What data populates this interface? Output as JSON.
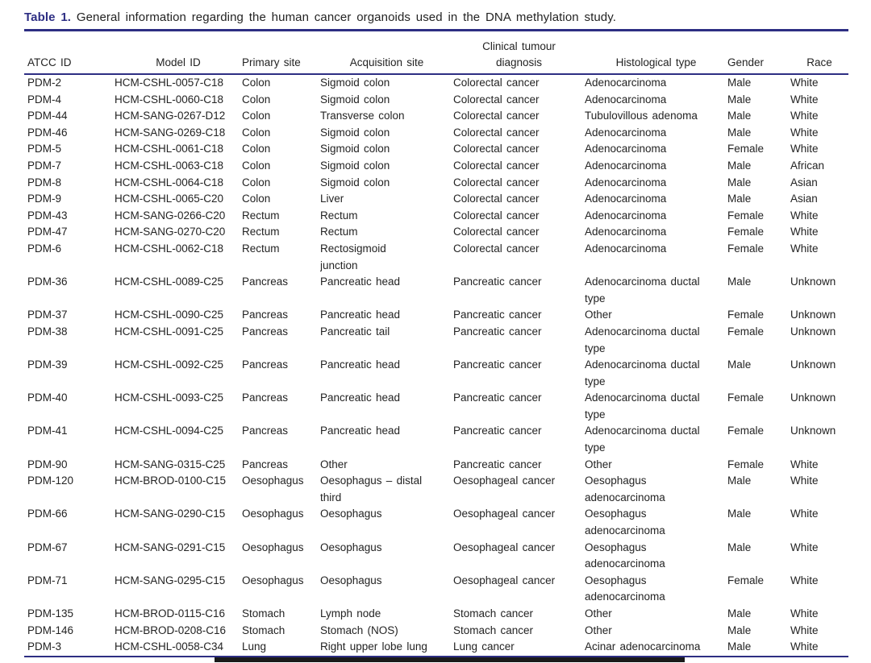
{
  "title": {
    "prefix": "Table 1.",
    "text": " General information regarding the human cancer organoids used in the DNA methylation study."
  },
  "colors": {
    "accent_navy": "#2d2e83",
    "body_text": "#232323",
    "next_table_rule": "#1a1a1a"
  },
  "table": {
    "column_keys": [
      "atcc_id",
      "model_id",
      "primary_site",
      "acquisition_site",
      "clinical_tumour_diagnosis",
      "histological_type",
      "gender",
      "race"
    ],
    "headers": {
      "atcc_id": "ATCC ID",
      "model_id": "Model ID",
      "primary_site": "Primary site",
      "acquisition_site": "Acquisition site",
      "clinical_tumour_diagnosis": "Clinical tumour\ndiagnosis",
      "histological_type": "Histological type",
      "gender": "Gender",
      "race": "Race"
    },
    "rows": [
      [
        "PDM-2",
        "HCM-CSHL-0057-C18",
        "Colon",
        "Sigmoid colon",
        "Colorectal cancer",
        "Adenocarcinoma",
        "Male",
        "White"
      ],
      [
        "PDM-4",
        "HCM-CSHL-0060-C18",
        "Colon",
        "Sigmoid colon",
        "Colorectal cancer",
        "Adenocarcinoma",
        "Male",
        "White"
      ],
      [
        "PDM-44",
        "HCM-SANG-0267-D12",
        "Colon",
        "Transverse colon",
        "Colorectal cancer",
        "Tubulovillous adenoma",
        "Male",
        "White"
      ],
      [
        "PDM-46",
        "HCM-SANG-0269-C18",
        "Colon",
        "Sigmoid colon",
        "Colorectal cancer",
        "Adenocarcinoma",
        "Male",
        "White"
      ],
      [
        "PDM-5",
        "HCM-CSHL-0061-C18",
        "Colon",
        "Sigmoid colon",
        "Colorectal cancer",
        "Adenocarcinoma",
        "Female",
        "White"
      ],
      [
        "PDM-7",
        "HCM-CSHL-0063-C18",
        "Colon",
        "Sigmoid colon",
        "Colorectal cancer",
        "Adenocarcinoma",
        "Male",
        "African"
      ],
      [
        "PDM-8",
        "HCM-CSHL-0064-C18",
        "Colon",
        "Sigmoid colon",
        "Colorectal cancer",
        "Adenocarcinoma",
        "Male",
        "Asian"
      ],
      [
        "PDM-9",
        "HCM-CSHL-0065-C20",
        "Colon",
        "Liver",
        "Colorectal cancer",
        "Adenocarcinoma",
        "Male",
        "Asian"
      ],
      [
        "PDM-43",
        "HCM-SANG-0266-C20",
        "Rectum",
        "Rectum",
        "Colorectal cancer",
        "Adenocarcinoma",
        "Female",
        "White"
      ],
      [
        "PDM-47",
        "HCM-SANG-0270-C20",
        "Rectum",
        "Rectum",
        "Colorectal cancer",
        "Adenocarcinoma",
        "Female",
        "White"
      ],
      [
        "PDM-6",
        "HCM-CSHL-0062-C18",
        "Rectum",
        "Rectosigmoid\njunction",
        "Colorectal cancer",
        "Adenocarcinoma",
        "Female",
        "White"
      ],
      [
        "PDM-36",
        "HCM-CSHL-0089-C25",
        "Pancreas",
        "Pancreatic head",
        "Pancreatic cancer",
        "Adenocarcinoma ductal\ntype",
        "Male",
        "Unknown"
      ],
      [
        "PDM-37",
        "HCM-CSHL-0090-C25",
        "Pancreas",
        "Pancreatic head",
        "Pancreatic cancer",
        "Other",
        "Female",
        "Unknown"
      ],
      [
        "PDM-38",
        "HCM-CSHL-0091-C25",
        "Pancreas",
        "Pancreatic tail",
        "Pancreatic cancer",
        "Adenocarcinoma ductal\ntype",
        "Female",
        "Unknown"
      ],
      [
        "PDM-39",
        "HCM-CSHL-0092-C25",
        "Pancreas",
        "Pancreatic head",
        "Pancreatic cancer",
        "Adenocarcinoma ductal\ntype",
        "Male",
        "Unknown"
      ],
      [
        "PDM-40",
        "HCM-CSHL-0093-C25",
        "Pancreas",
        "Pancreatic head",
        "Pancreatic cancer",
        "Adenocarcinoma ductal\ntype",
        "Female",
        "Unknown"
      ],
      [
        "PDM-41",
        "HCM-CSHL-0094-C25",
        "Pancreas",
        "Pancreatic head",
        "Pancreatic cancer",
        "Adenocarcinoma ductal\ntype",
        "Female",
        "Unknown"
      ],
      [
        "PDM-90",
        "HCM-SANG-0315-C25",
        "Pancreas",
        "Other",
        "Pancreatic cancer",
        "Other",
        "Female",
        "White"
      ],
      [
        "PDM-120",
        "HCM-BROD-0100-C15",
        "Oesophagus",
        "Oesophagus – distal\nthird",
        "Oesophageal cancer",
        "Oesophagus\nadenocarcinoma",
        "Male",
        "White"
      ],
      [
        "PDM-66",
        "HCM-SANG-0290-C15",
        "Oesophagus",
        "Oesophagus",
        "Oesophageal cancer",
        "Oesophagus\nadenocarcinoma",
        "Male",
        "White"
      ],
      [
        "PDM-67",
        "HCM-SANG-0291-C15",
        "Oesophagus",
        "Oesophagus",
        "Oesophageal cancer",
        "Oesophagus\nadenocarcinoma",
        "Male",
        "White"
      ],
      [
        "PDM-71",
        "HCM-SANG-0295-C15",
        "Oesophagus",
        "Oesophagus",
        "Oesophageal cancer",
        "Oesophagus\nadenocarcinoma",
        "Female",
        "White"
      ],
      [
        "PDM-135",
        "HCM-BROD-0115-C16",
        "Stomach",
        "Lymph node",
        "Stomach cancer",
        "Other",
        "Male",
        "White"
      ],
      [
        "PDM-146",
        "HCM-BROD-0208-C16",
        "Stomach",
        "Stomach (NOS)",
        "Stomach cancer",
        "Other",
        "Male",
        "White"
      ],
      [
        "PDM-3",
        "HCM-CSHL-0058-C34",
        "Lung",
        "Right upper lobe lung",
        "Lung cancer",
        "Acinar adenocarcinoma",
        "Male",
        "White"
      ]
    ]
  }
}
